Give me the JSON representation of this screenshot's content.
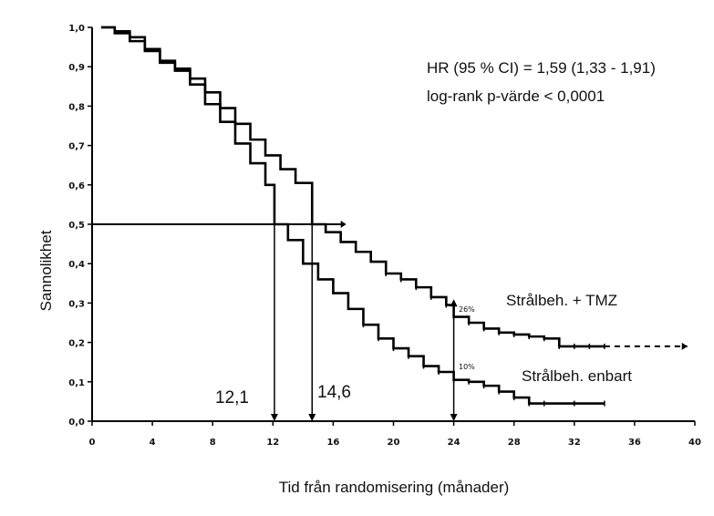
{
  "chart_data": {
    "type": "line",
    "title": "",
    "xlabel": "Tid från randomisering (månader)",
    "ylabel": "Sannolikhet",
    "xlim": [
      0,
      40
    ],
    "ylim": [
      0,
      1.0
    ],
    "x_ticks": [
      "0",
      "4",
      "8",
      "12",
      "16",
      "20",
      "24",
      "28",
      "32",
      "36",
      "40"
    ],
    "y_ticks": [
      "0,0",
      "0,1",
      "0,2",
      "0,3",
      "0,4",
      "0,5",
      "0,6",
      "0,7",
      "0,8",
      "0,9",
      "1,0"
    ],
    "annotations": {
      "hr": "HR (95 % CI) = 1,59 (1,33 - 1,91)",
      "logrank": "log-rank p-värde < 0,0001"
    },
    "medians": {
      "rt_only": {
        "label": "12,1",
        "x": 12.1
      },
      "rt_tmz": {
        "label": "14,6",
        "x": 14.6
      }
    },
    "markers_24": {
      "tmz": {
        "label": "26%",
        "y": 0.265
      },
      "rt": {
        "label": "10%",
        "y": 0.105
      }
    },
    "series": [
      {
        "name": "Strålbeh. + TMZ",
        "dashed_to": 39.5,
        "points": [
          [
            0.6,
            1.0
          ],
          [
            1.5,
            0.99
          ],
          [
            2.5,
            0.975
          ],
          [
            3.5,
            0.945
          ],
          [
            4.5,
            0.91
          ],
          [
            5.5,
            0.895
          ],
          [
            6.5,
            0.87
          ],
          [
            7.5,
            0.835
          ],
          [
            8.5,
            0.795
          ],
          [
            9.5,
            0.755
          ],
          [
            10.5,
            0.715
          ],
          [
            11.5,
            0.675
          ],
          [
            12.5,
            0.64
          ],
          [
            13.5,
            0.605
          ],
          [
            14.6,
            0.5
          ],
          [
            15.5,
            0.48
          ],
          [
            16.5,
            0.455
          ],
          [
            17.5,
            0.43
          ],
          [
            18.5,
            0.405
          ],
          [
            19.5,
            0.375
          ],
          [
            20.5,
            0.36
          ],
          [
            21.5,
            0.34
          ],
          [
            22.5,
            0.315
          ],
          [
            23.5,
            0.295
          ],
          [
            24.0,
            0.265
          ],
          [
            25.0,
            0.25
          ],
          [
            26.0,
            0.235
          ],
          [
            27.0,
            0.225
          ],
          [
            28.0,
            0.22
          ],
          [
            29.0,
            0.215
          ],
          [
            30.0,
            0.21
          ],
          [
            31.0,
            0.19
          ],
          [
            32.0,
            0.19
          ],
          [
            33.0,
            0.19
          ],
          [
            34.0,
            0.19
          ]
        ]
      },
      {
        "name": "Strålbeh. enbart",
        "points": [
          [
            0.6,
            1.0
          ],
          [
            1.5,
            0.985
          ],
          [
            2.5,
            0.965
          ],
          [
            3.5,
            0.94
          ],
          [
            4.5,
            0.915
          ],
          [
            5.5,
            0.89
          ],
          [
            6.5,
            0.855
          ],
          [
            7.5,
            0.805
          ],
          [
            8.5,
            0.76
          ],
          [
            9.5,
            0.705
          ],
          [
            10.5,
            0.655
          ],
          [
            11.5,
            0.6
          ],
          [
            12.1,
            0.5
          ],
          [
            13.0,
            0.46
          ],
          [
            14.0,
            0.4
          ],
          [
            15.0,
            0.36
          ],
          [
            16.0,
            0.325
          ],
          [
            17.0,
            0.285
          ],
          [
            18.0,
            0.245
          ],
          [
            19.0,
            0.21
          ],
          [
            20.0,
            0.185
          ],
          [
            21.0,
            0.165
          ],
          [
            22.0,
            0.14
          ],
          [
            23.0,
            0.125
          ],
          [
            24.0,
            0.105
          ],
          [
            25.0,
            0.1
          ],
          [
            26.0,
            0.09
          ],
          [
            27.0,
            0.075
          ],
          [
            28.0,
            0.06
          ],
          [
            29.0,
            0.045
          ],
          [
            30.0,
            0.045
          ],
          [
            32.0,
            0.045
          ],
          [
            34.0,
            0.045
          ]
        ]
      }
    ]
  }
}
